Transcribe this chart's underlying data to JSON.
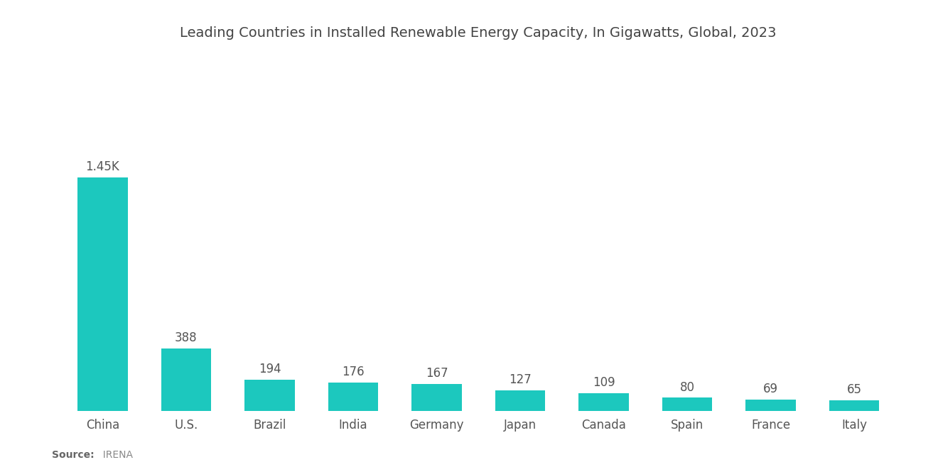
{
  "title": "Leading Countries in Installed Renewable Energy Capacity, In Gigawatts, Global, 2023",
  "categories": [
    "China",
    "U.S.",
    "Brazil",
    "India",
    "Germany",
    "Japan",
    "Canada",
    "Spain",
    "France",
    "Italy"
  ],
  "values": [
    1450,
    388,
    194,
    176,
    167,
    127,
    109,
    80,
    69,
    65
  ],
  "labels": [
    "1.45K",
    "388",
    "194",
    "176",
    "167",
    "127",
    "109",
    "80",
    "69",
    "65"
  ],
  "bar_color": "#1CC8BE",
  "background_color": "#FFFFFF",
  "title_fontsize": 14,
  "label_fontsize": 12,
  "tick_fontsize": 12,
  "source_bold": "Source:",
  "source_text": "  IRENA",
  "ylim": [
    0,
    2200
  ]
}
